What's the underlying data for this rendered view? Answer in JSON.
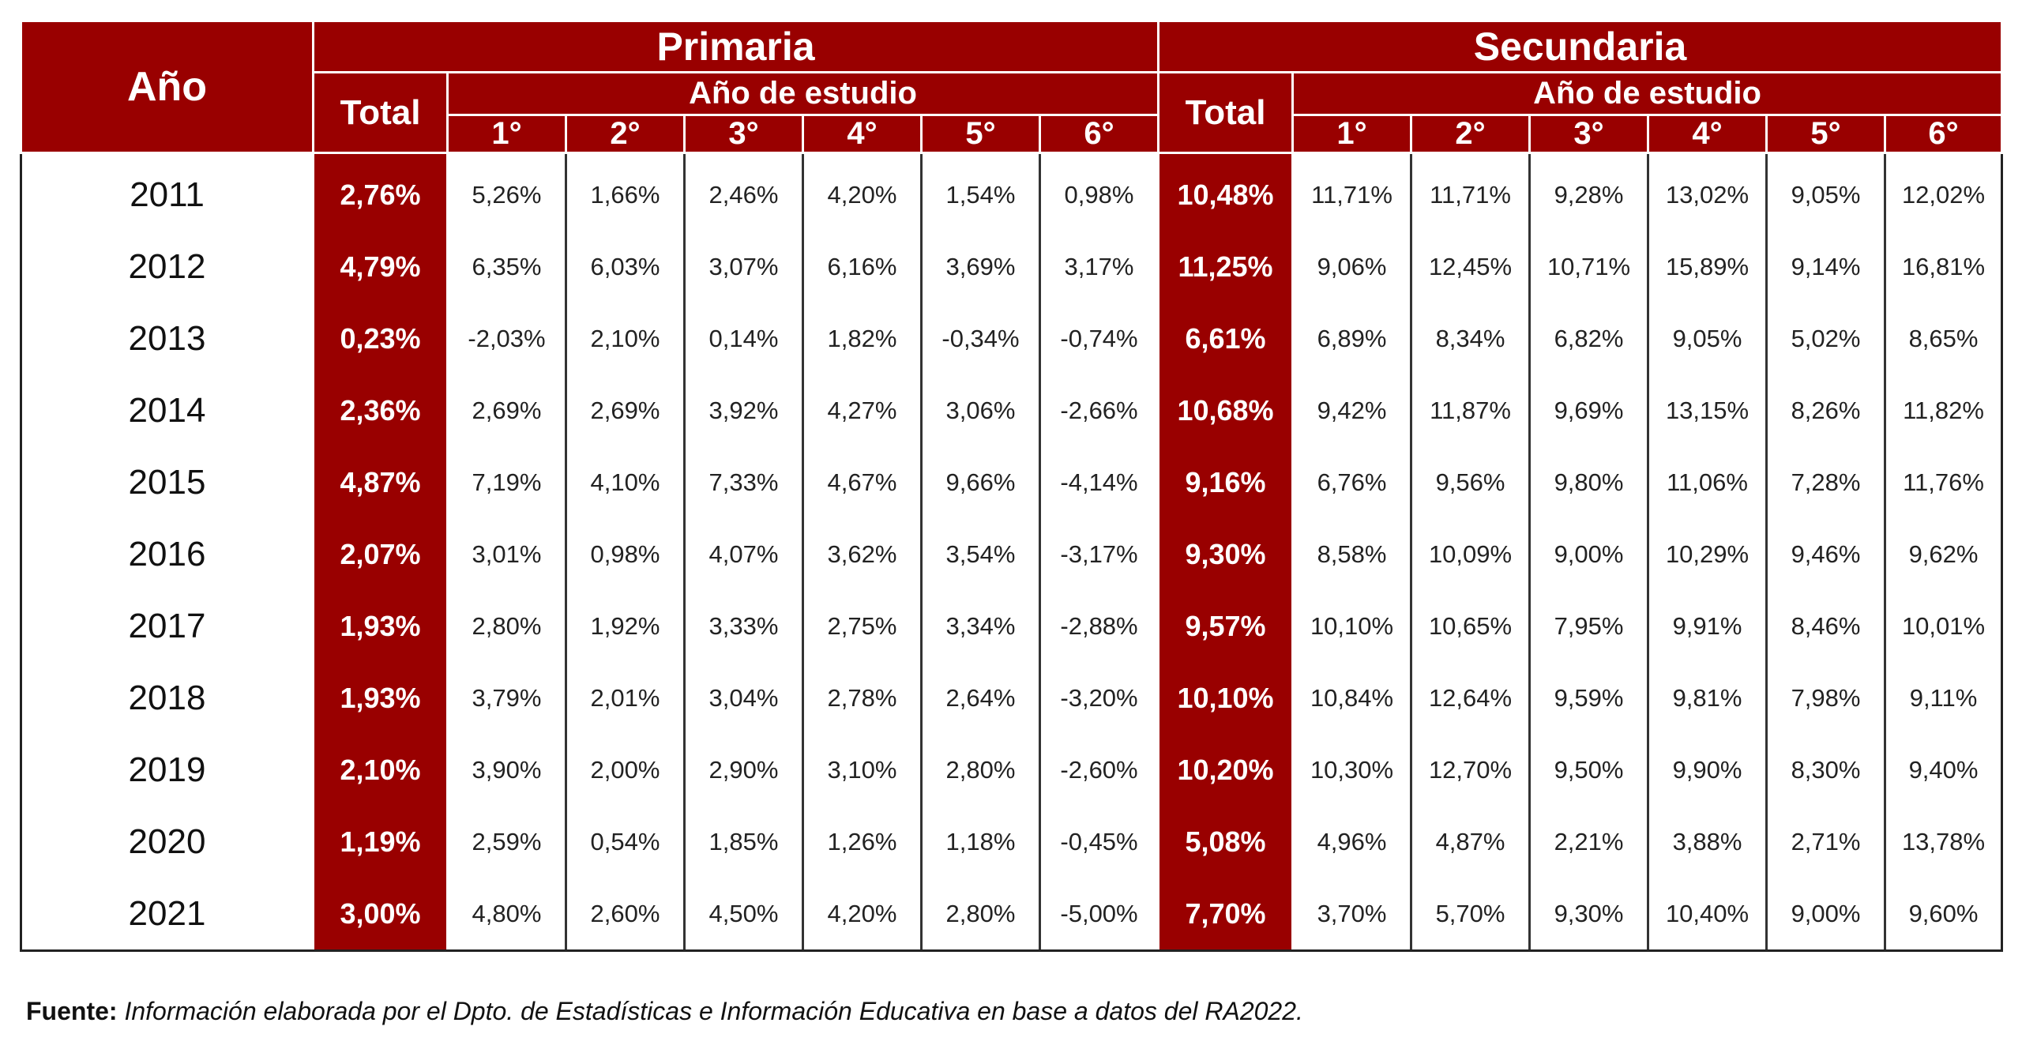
{
  "chart_data": {
    "type": "table",
    "headers": {
      "year": "Año",
      "primaria": "Primaria",
      "secundaria": "Secundaria",
      "total": "Total",
      "ano_de_estudio": "Año de estudio",
      "grades": [
        "1°",
        "2°",
        "3°",
        "4°",
        "5°",
        "6°"
      ]
    },
    "rows": [
      {
        "year": "2011",
        "prim_total": "2,76%",
        "prim": [
          "5,26%",
          "1,66%",
          "2,46%",
          "4,20%",
          "1,54%",
          "0,98%"
        ],
        "sec_total": "10,48%",
        "sec": [
          "11,71%",
          "11,71%",
          "9,28%",
          "13,02%",
          "9,05%",
          "12,02%"
        ]
      },
      {
        "year": "2012",
        "prim_total": "4,79%",
        "prim": [
          "6,35%",
          "6,03%",
          "3,07%",
          "6,16%",
          "3,69%",
          "3,17%"
        ],
        "sec_total": "11,25%",
        "sec": [
          "9,06%",
          "12,45%",
          "10,71%",
          "15,89%",
          "9,14%",
          "16,81%"
        ]
      },
      {
        "year": "2013",
        "prim_total": "0,23%",
        "prim": [
          "-2,03%",
          "2,10%",
          "0,14%",
          "1,82%",
          "-0,34%",
          "-0,74%"
        ],
        "sec_total": "6,61%",
        "sec": [
          "6,89%",
          "8,34%",
          "6,82%",
          "9,05%",
          "5,02%",
          "8,65%"
        ]
      },
      {
        "year": "2014",
        "prim_total": "2,36%",
        "prim": [
          "2,69%",
          "2,69%",
          "3,92%",
          "4,27%",
          "3,06%",
          "-2,66%"
        ],
        "sec_total": "10,68%",
        "sec": [
          "9,42%",
          "11,87%",
          "9,69%",
          "13,15%",
          "8,26%",
          "11,82%"
        ]
      },
      {
        "year": "2015",
        "prim_total": "4,87%",
        "prim": [
          "7,19%",
          "4,10%",
          "7,33%",
          "4,67%",
          "9,66%",
          "-4,14%"
        ],
        "sec_total": "9,16%",
        "sec": [
          "6,76%",
          "9,56%",
          "9,80%",
          "11,06%",
          "7,28%",
          "11,76%"
        ]
      },
      {
        "year": "2016",
        "prim_total": "2,07%",
        "prim": [
          "3,01%",
          "0,98%",
          "4,07%",
          "3,62%",
          "3,54%",
          "-3,17%"
        ],
        "sec_total": "9,30%",
        "sec": [
          "8,58%",
          "10,09%",
          "9,00%",
          "10,29%",
          "9,46%",
          "9,62%"
        ]
      },
      {
        "year": "2017",
        "prim_total": "1,93%",
        "prim": [
          "2,80%",
          "1,92%",
          "3,33%",
          "2,75%",
          "3,34%",
          "-2,88%"
        ],
        "sec_total": "9,57%",
        "sec": [
          "10,10%",
          "10,65%",
          "7,95%",
          "9,91%",
          "8,46%",
          "10,01%"
        ]
      },
      {
        "year": "2018",
        "prim_total": "1,93%",
        "prim": [
          "3,79%",
          "2,01%",
          "3,04%",
          "2,78%",
          "2,64%",
          "-3,20%"
        ],
        "sec_total": "10,10%",
        "sec": [
          "10,84%",
          "12,64%",
          "9,59%",
          "9,81%",
          "7,98%",
          "9,11%"
        ]
      },
      {
        "year": "2019",
        "prim_total": "2,10%",
        "prim": [
          "3,90%",
          "2,00%",
          "2,90%",
          "3,10%",
          "2,80%",
          "-2,60%"
        ],
        "sec_total": "10,20%",
        "sec": [
          "10,30%",
          "12,70%",
          "9,50%",
          "9,90%",
          "8,30%",
          "9,40%"
        ]
      },
      {
        "year": "2020",
        "prim_total": "1,19%",
        "prim": [
          "2,59%",
          "0,54%",
          "1,85%",
          "1,26%",
          "1,18%",
          "-0,45%"
        ],
        "sec_total": "5,08%",
        "sec": [
          "4,96%",
          "4,87%",
          "2,21%",
          "3,88%",
          "2,71%",
          "13,78%"
        ]
      },
      {
        "year": "2021",
        "prim_total": "3,00%",
        "prim": [
          "4,80%",
          "2,60%",
          "4,50%",
          "4,20%",
          "2,80%",
          "-5,00%"
        ],
        "sec_total": "7,70%",
        "sec": [
          "3,70%",
          "5,70%",
          "9,30%",
          "10,40%",
          "9,00%",
          "9,60%"
        ]
      }
    ]
  },
  "source": {
    "label": "Fuente:",
    "text": "Información elaborada por el Dpto. de Estadísticas e Información Educativa en base a datos del RA2022."
  },
  "colors": {
    "header_bg": "#990000",
    "header_text": "#ffffff"
  }
}
